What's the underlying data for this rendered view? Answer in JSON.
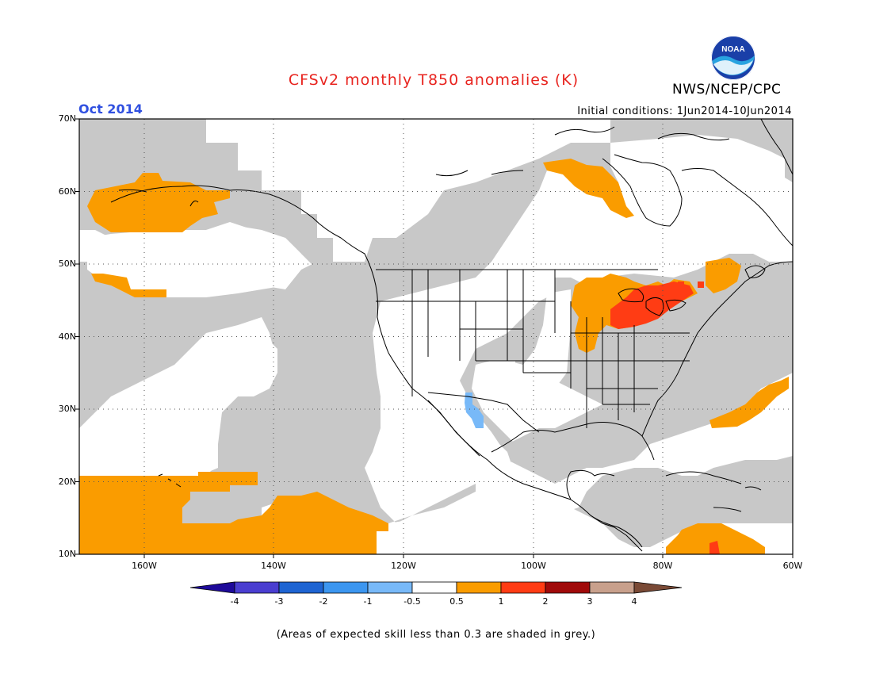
{
  "title": "CFSv2 monthly T850 anomalies (K)",
  "organization": "NWS/NCEP/CPC",
  "logo_text": "NOAA",
  "valid_month": "Oct 2014",
  "initial_conditions": "Initial conditions: 1Jun2014-10Jun2014",
  "footnote": "(Areas of expected skill less than 0.3 are shaded in grey.)",
  "colors": {
    "title": "#e8241f",
    "month": "#3050e0",
    "skill_grey": "#c8c8c8",
    "ocean_white": "#ffffff"
  },
  "map": {
    "lon_range": [
      -170,
      -60
    ],
    "lat_range": [
      10,
      70
    ],
    "lat_labels": [
      "70N",
      "60N",
      "50N",
      "40N",
      "30N",
      "20N",
      "10N"
    ],
    "lon_labels": [
      "160W",
      "140W",
      "120W",
      "100W",
      "80W",
      "60W"
    ]
  },
  "colorbar": {
    "levels": [
      "-4",
      "-3",
      "-2",
      "-1",
      "-0.5",
      "0.5",
      "1",
      "2",
      "3",
      "4"
    ],
    "colors": [
      "#1e0a9a",
      "#4a3ed0",
      "#1e64d2",
      "#3c96f0",
      "#78b9f8",
      "#ffffff",
      "#fa9c00",
      "#ff3c14",
      "#a00a0a",
      "#c8a08c",
      "#7a4a36"
    ]
  },
  "anomaly_regions": [
    {
      "name": "Great Lakes warm core",
      "category": "1 to 2"
    },
    {
      "name": "Upper Midwest / Great Lakes",
      "category": "0.5 to 1"
    },
    {
      "name": "Hudson Bay east",
      "category": "0.5 to 1"
    },
    {
      "name": "Bering Sea",
      "category": "0.5 to 1"
    },
    {
      "name": "Subtropical East Pacific",
      "category": "0.5 to 1"
    },
    {
      "name": "Western Atlantic",
      "category": "0.5 to 1"
    },
    {
      "name": "Caribbean",
      "category": "0.5 to 1"
    },
    {
      "name": "Gulf of California",
      "category": "-1 to -0.5"
    }
  ]
}
